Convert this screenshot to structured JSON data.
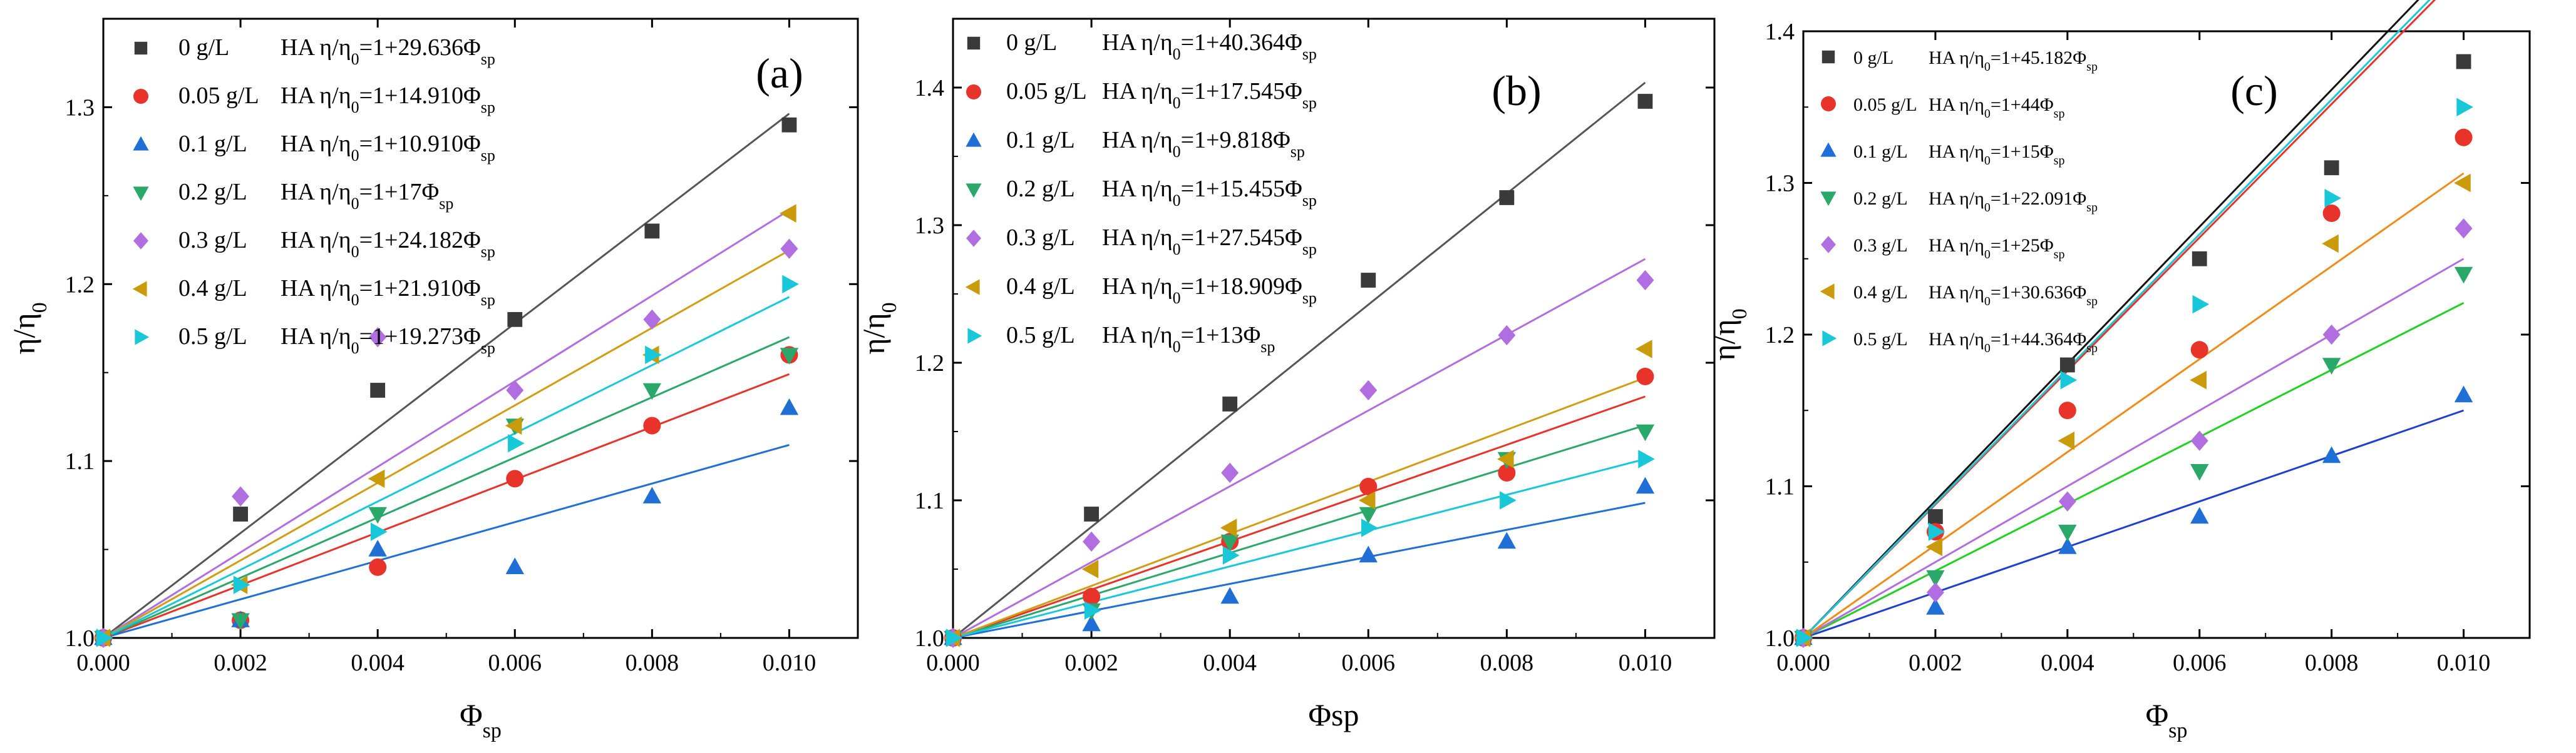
{
  "figure": {
    "description_label": "Relative viscosity vs volume fraction for HA concentrations"
  },
  "chart_data": [
    {
      "type": "scatter",
      "panel_label": "(a)",
      "xlabel": "Φ",
      "xlabel_sub": "sp",
      "ylabel": "η/η",
      "ylabel_sub": "0",
      "xlim": [
        0,
        0.011
      ],
      "ylim": [
        1.0,
        1.35
      ],
      "xticks": [
        0.0,
        0.002,
        0.004,
        0.006,
        0.008,
        0.01
      ],
      "yticks": [
        1.0,
        1.1,
        1.2,
        1.3
      ],
      "xtick_labels": [
        "0.000",
        "0.002",
        "0.004",
        "0.006",
        "0.008",
        "0.010"
      ],
      "ytick_labels": [
        "1.0",
        "1.1",
        "1.2",
        "1.3"
      ],
      "x": [
        0,
        0.002,
        0.004,
        0.006,
        0.008,
        0.01
      ],
      "series": [
        {
          "name": "0 g/L",
          "marker": "square",
          "color": "#3a3a3a",
          "line_color": "#555555",
          "slope": 29.636,
          "eq_prefix": "HA  η/η",
          "eq_mid": "=1+29.636Φ",
          "values": [
            1.0,
            1.07,
            1.14,
            1.18,
            1.23,
            1.29
          ]
        },
        {
          "name": "0.05 g/L",
          "marker": "circle",
          "color": "#e8332a",
          "line_color": "#e8332a",
          "slope": 14.91,
          "eq_prefix": "HA  η/η",
          "eq_mid": "=1+14.910Φ",
          "values": [
            1.0,
            1.01,
            1.04,
            1.09,
            1.12,
            1.16
          ]
        },
        {
          "name": "0.1 g/L",
          "marker": "triangle-up",
          "color": "#1f6fd6",
          "line_color": "#1f6fd6",
          "slope": 10.91,
          "eq_prefix": "HA  η/η",
          "eq_mid": "=1+10.910Φ",
          "values": [
            1.0,
            1.01,
            1.05,
            1.04,
            1.08,
            1.13
          ]
        },
        {
          "name": "0.2 g/L",
          "marker": "triangle-down",
          "color": "#2aa86a",
          "line_color": "#2aa86a",
          "slope": 17,
          "eq_prefix": "HA  η/η",
          "eq_mid": "=1+17Φ",
          "values": [
            1.0,
            1.01,
            1.07,
            1.12,
            1.14,
            1.16
          ]
        },
        {
          "name": "0.3 g/L",
          "marker": "diamond",
          "color": "#b06ee0",
          "line_color": "#b06ee0",
          "slope": 24.182,
          "eq_prefix": "HA  η/η",
          "eq_mid": "=1+24.182Φ",
          "values": [
            1.0,
            1.08,
            1.17,
            1.14,
            1.18,
            1.22
          ]
        },
        {
          "name": "0.4 g/L",
          "marker": "triangle-left",
          "color": "#c99a0a",
          "line_color": "#d19d12",
          "slope": 21.91,
          "eq_prefix": "HA  η/η",
          "eq_mid": "=1+21.910Φ",
          "values": [
            1.0,
            1.03,
            1.09,
            1.12,
            1.16,
            1.24
          ]
        },
        {
          "name": "0.5 g/L",
          "marker": "triangle-right",
          "color": "#19c8d8",
          "line_color": "#19c8d8",
          "slope": 19.273,
          "eq_prefix": "HA  η/η",
          "eq_mid": "=1+19.273Φ",
          "values": [
            1.0,
            1.03,
            1.06,
            1.11,
            1.16,
            1.2
          ]
        }
      ]
    },
    {
      "type": "scatter",
      "panel_label": "(b)",
      "xlabel": "Φsp",
      "xlabel_sub": "",
      "ylabel": "η/η",
      "ylabel_sub": "0",
      "xlim": [
        0,
        0.011
      ],
      "ylim": [
        1.0,
        1.45
      ],
      "xticks": [
        0.0,
        0.002,
        0.004,
        0.006,
        0.008,
        0.01
      ],
      "yticks": [
        1.0,
        1.1,
        1.2,
        1.3,
        1.4
      ],
      "xtick_labels": [
        "0.000",
        "0.002",
        "0.004",
        "0.006",
        "0.008",
        "0.010"
      ],
      "ytick_labels": [
        "1.0",
        "1.1",
        "1.2",
        "1.3",
        "1.4"
      ],
      "x": [
        0,
        0.002,
        0.004,
        0.006,
        0.008,
        0.01
      ],
      "series": [
        {
          "name": "0 g/L",
          "marker": "square",
          "color": "#3a3a3a",
          "line_color": "#555555",
          "slope": 40.364,
          "eq_prefix": "HA  η/η",
          "eq_mid": "=1+40.364Φ",
          "values": [
            1.0,
            1.09,
            1.17,
            1.26,
            1.32,
            1.39
          ]
        },
        {
          "name": "0.05 g/L",
          "marker": "circle",
          "color": "#e8332a",
          "line_color": "#e8332a",
          "slope": 17.545,
          "eq_prefix": "HA  η/η",
          "eq_mid": "=1+17.545Φ",
          "values": [
            1.0,
            1.03,
            1.07,
            1.11,
            1.12,
            1.19
          ]
        },
        {
          "name": "0.1 g/L",
          "marker": "triangle-up",
          "color": "#1f6fd6",
          "line_color": "#1f6fd6",
          "slope": 9.818,
          "eq_prefix": "HA  η/η",
          "eq_mid": "=1+9.818Φ",
          "values": [
            1.0,
            1.01,
            1.03,
            1.06,
            1.07,
            1.11
          ]
        },
        {
          "name": "0.2 g/L",
          "marker": "triangle-down",
          "color": "#2aa86a",
          "line_color": "#2aa86a",
          "slope": 15.455,
          "eq_prefix": "HA  η/η",
          "eq_mid": "=1+15.455Φ",
          "values": [
            1.0,
            1.02,
            1.07,
            1.09,
            1.13,
            1.15
          ]
        },
        {
          "name": "0.3 g/L",
          "marker": "diamond",
          "color": "#b06ee0",
          "line_color": "#b06ee0",
          "slope": 27.545,
          "eq_prefix": "HA  η/η",
          "eq_mid": "=1+27.545Φ",
          "values": [
            1.0,
            1.07,
            1.12,
            1.18,
            1.22,
            1.26
          ]
        },
        {
          "name": "0.4 g/L",
          "marker": "triangle-left",
          "color": "#c99a0a",
          "line_color": "#d19d12",
          "slope": 18.909,
          "eq_prefix": "HA  η/η",
          "eq_mid": "=1+18.909Φ",
          "values": [
            1.0,
            1.05,
            1.08,
            1.1,
            1.13,
            1.21
          ]
        },
        {
          "name": "0.5 g/L",
          "marker": "triangle-right",
          "color": "#19c8d8",
          "line_color": "#19c8d8",
          "slope": 13,
          "eq_prefix": "HA  η/η",
          "eq_mid": "=1+13Φ",
          "values": [
            1.0,
            1.02,
            1.06,
            1.08,
            1.1,
            1.13
          ]
        }
      ]
    },
    {
      "type": "scatter",
      "panel_label": "(c)",
      "xlabel": "Φ",
      "xlabel_sub": "sp",
      "ylabel": "η/η",
      "ylabel_sub": "0",
      "xlim": [
        0,
        0.011
      ],
      "ylim": [
        1.0,
        1.4
      ],
      "xticks": [
        0.0,
        0.002,
        0.004,
        0.006,
        0.008,
        0.01
      ],
      "yticks": [
        1.0,
        1.1,
        1.2,
        1.3,
        1.4
      ],
      "xtick_labels": [
        "0.000",
        "0.002",
        "0.004",
        "0.006",
        "0.008",
        "0.010"
      ],
      "ytick_labels": [
        "1.0",
        "1.1",
        "1.2",
        "1.3",
        "1.4"
      ],
      "x": [
        0,
        0.002,
        0.004,
        0.006,
        0.008,
        0.01
      ],
      "series": [
        {
          "name": "0 g/L",
          "marker": "square",
          "color": "#3a3a3a",
          "line_color": "#111111",
          "slope": 45.182,
          "eq_prefix": "HA η/η",
          "eq_mid": "=1+45.182Φ",
          "values": [
            1.0,
            1.08,
            1.18,
            1.25,
            1.31,
            1.38
          ]
        },
        {
          "name": "0.05 g/L",
          "marker": "circle",
          "color": "#e8332a",
          "line_color": "#e8332a",
          "slope": 44,
          "eq_prefix": "HA η/η",
          "eq_mid": "=1+44Φ",
          "values": [
            1.0,
            1.07,
            1.15,
            1.19,
            1.28,
            1.33
          ]
        },
        {
          "name": "0.1 g/L",
          "marker": "triangle-up",
          "color": "#1f6fd6",
          "line_color": "#1f3fd0",
          "slope": 15,
          "eq_prefix": "HA η/η",
          "eq_mid": "=1+15Φ",
          "values": [
            1.0,
            1.02,
            1.06,
            1.08,
            1.12,
            1.16
          ]
        },
        {
          "name": "0.2 g/L",
          "marker": "triangle-down",
          "color": "#2aa86a",
          "line_color": "#22d022",
          "slope": 22.091,
          "eq_prefix": "HA η/η",
          "eq_mid": "=1+22.091Φ",
          "values": [
            1.0,
            1.04,
            1.07,
            1.11,
            1.18,
            1.24
          ]
        },
        {
          "name": "0.3 g/L",
          "marker": "diamond",
          "color": "#b06ee0",
          "line_color": "#b06ee0",
          "slope": 25,
          "eq_prefix": "HA η/η",
          "eq_mid": "=1+25Φ",
          "values": [
            1.0,
            1.03,
            1.09,
            1.13,
            1.2,
            1.27
          ]
        },
        {
          "name": "0.4 g/L",
          "marker": "triangle-left",
          "color": "#c99a0a",
          "line_color": "#f08a18",
          "slope": 30.636,
          "eq_prefix": "HA η/η",
          "eq_mid": "=1+30.636Φ",
          "values": [
            1.0,
            1.06,
            1.13,
            1.17,
            1.26,
            1.3
          ]
        },
        {
          "name": "0.5 g/L",
          "marker": "triangle-right",
          "color": "#19c8d8",
          "line_color": "#19c8d8",
          "slope": 44.364,
          "eq_prefix": "HA η/η",
          "eq_mid": "=1+44.364Φ",
          "values": [
            1.0,
            1.07,
            1.17,
            1.22,
            1.29,
            1.35
          ]
        }
      ]
    }
  ]
}
